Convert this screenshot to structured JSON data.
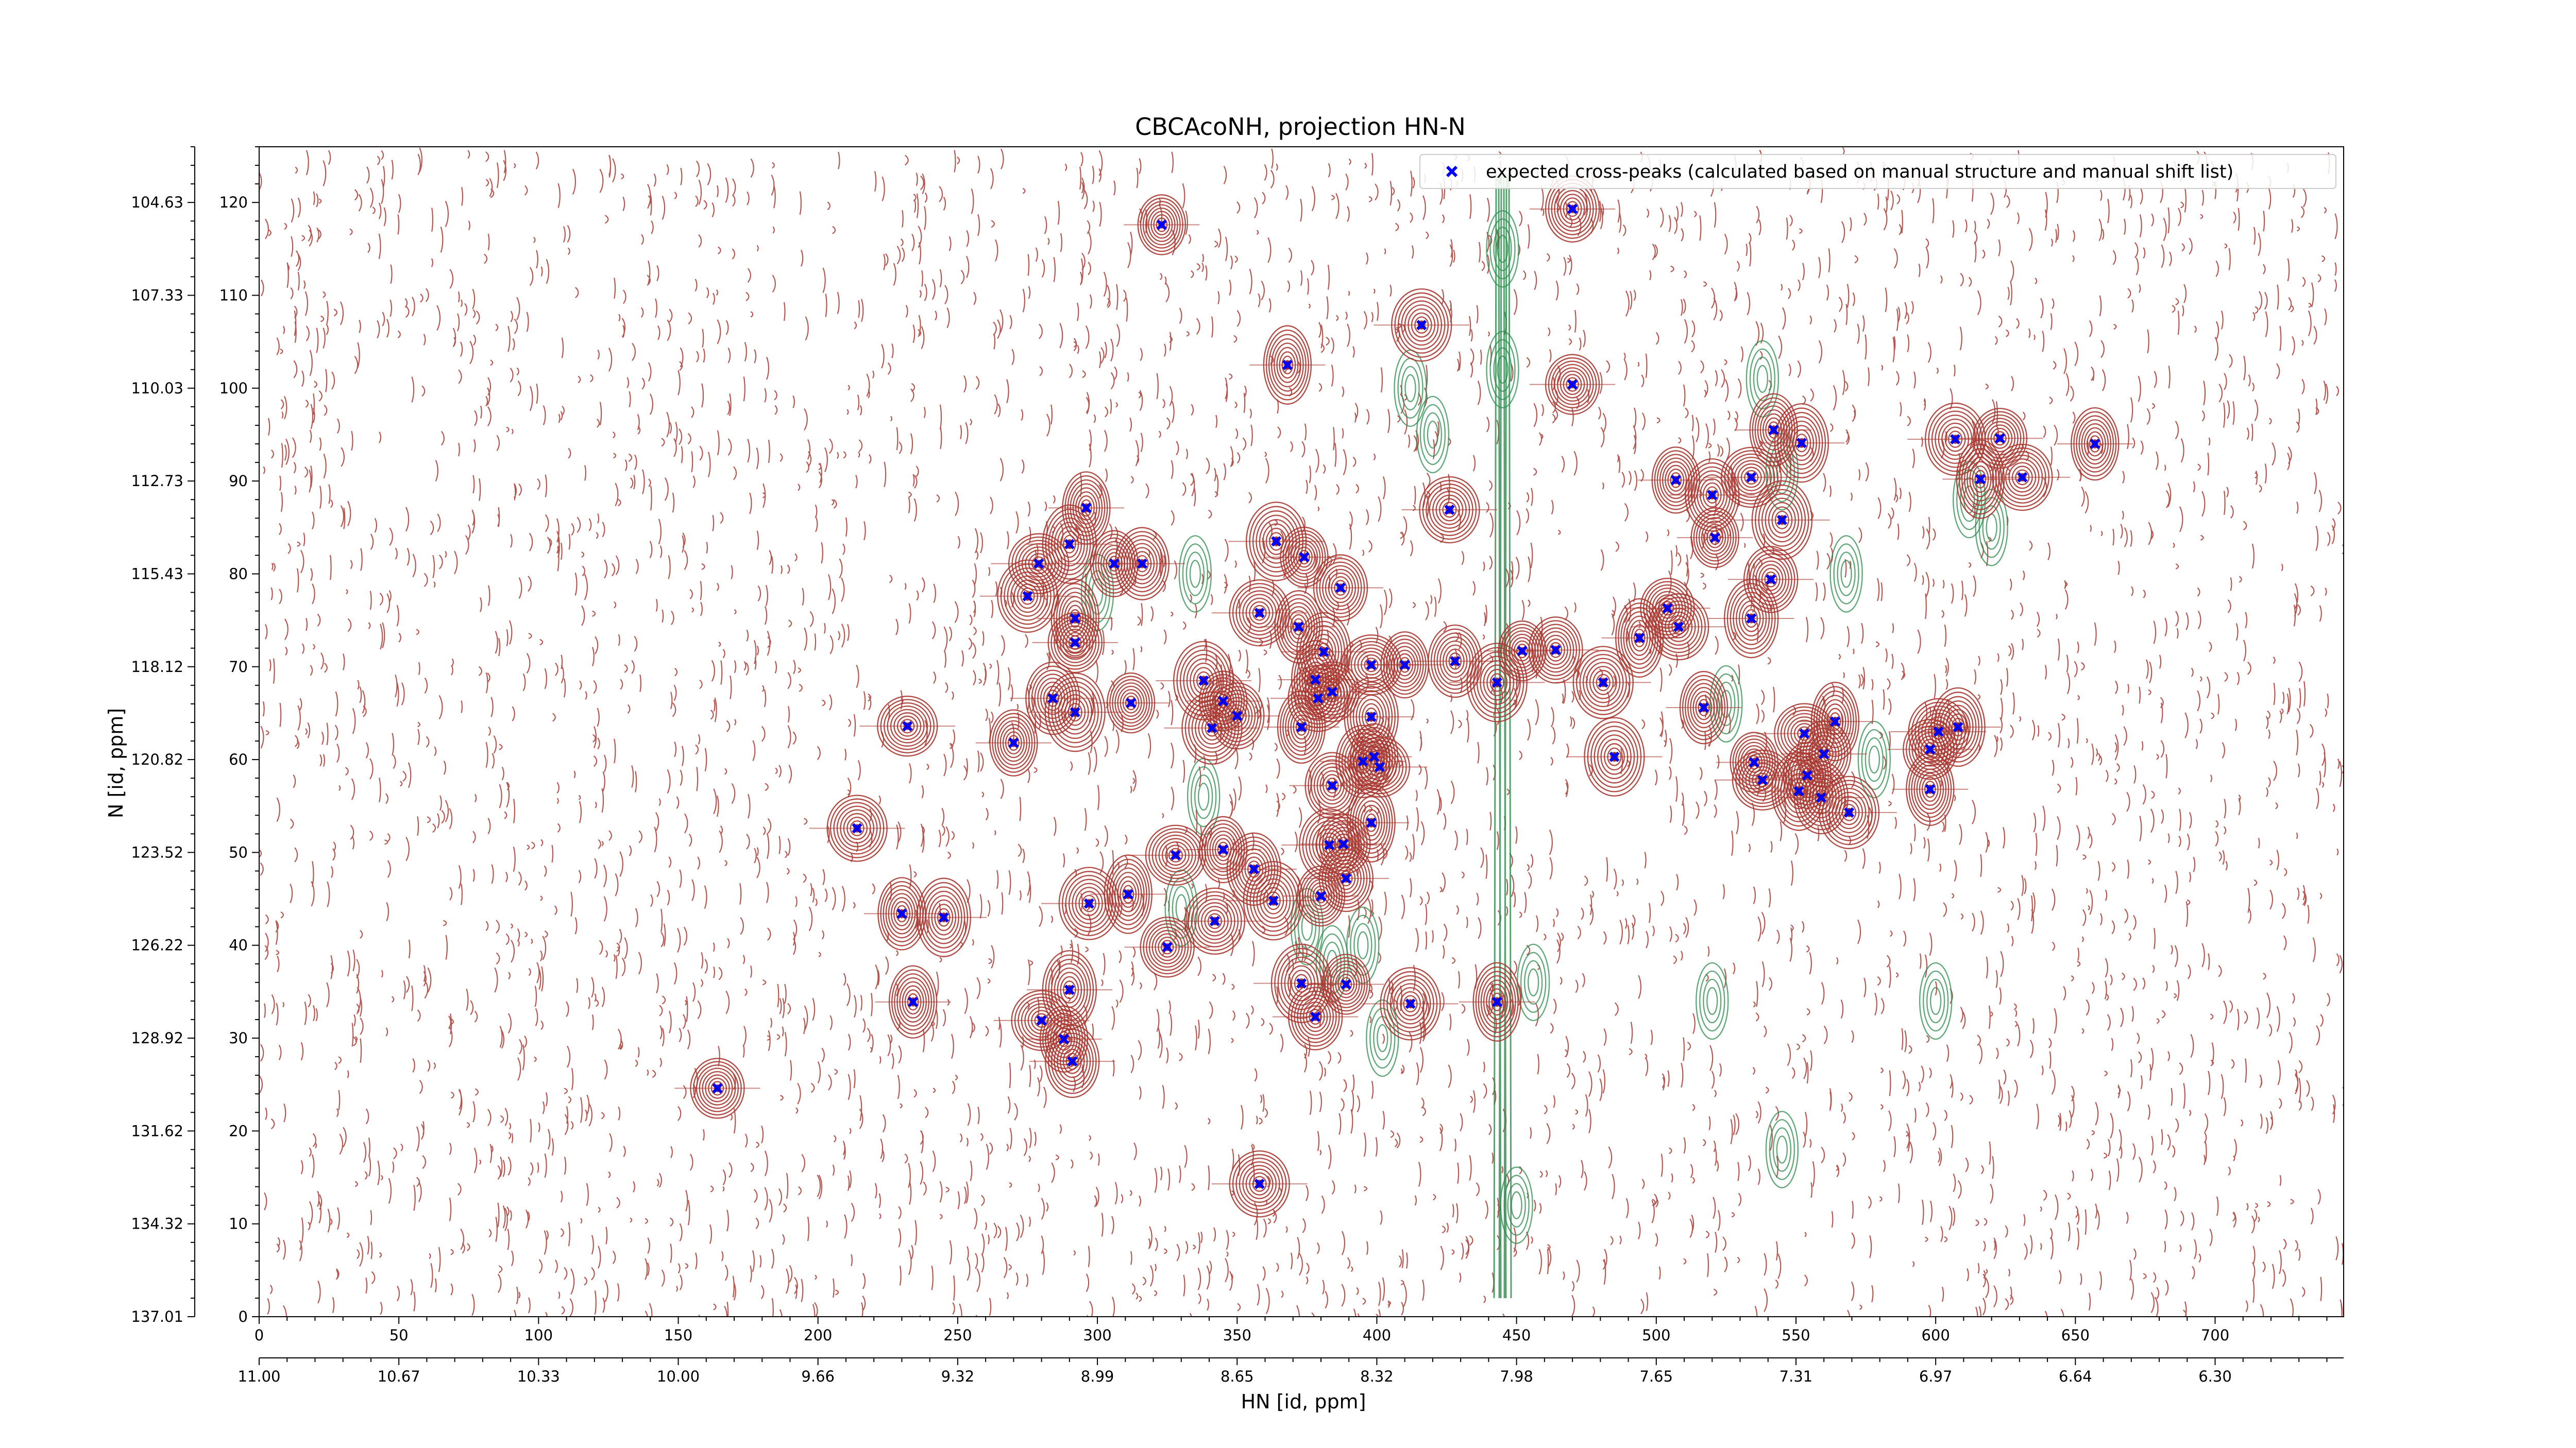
{
  "chart_data": {
    "type": "scatter",
    "title": "CBCAcoNH, projection HN-N",
    "xlabel": "HN [id, ppm]",
    "ylabel": "N [id, ppm]",
    "xlim": [
      0,
      746
    ],
    "ylim": [
      0,
      126
    ],
    "x_ticks": [
      0,
      50,
      100,
      150,
      200,
      250,
      300,
      350,
      400,
      450,
      500,
      550,
      600,
      650,
      700
    ],
    "y_ticks": [
      0,
      10,
      20,
      30,
      40,
      50,
      60,
      70,
      80,
      90,
      100,
      110,
      120
    ],
    "x_ppm_labels": [
      "11.00",
      "10.67",
      "10.33",
      "10.00",
      "9.66",
      "9.32",
      "8.99",
      "8.65",
      "8.32",
      "7.98",
      "7.65",
      "7.31",
      "6.97",
      "6.64",
      "6.30"
    ],
    "y_ppm_labels": [
      "137.01",
      "134.32",
      "131.62",
      "128.92",
      "126.22",
      "123.52",
      "120.82",
      "118.12",
      "115.43",
      "112.73",
      "110.03",
      "107.33",
      "104.63"
    ],
    "grid": false,
    "legend_position": "top-right",
    "background_contours": {
      "positive_color": "#a83a32",
      "negative_color": "#2e8b4e"
    },
    "series": [
      {
        "name": "expected cross-peaks (calculated based on manual structure and manual shift list)",
        "color": "#0000ff",
        "marker": "x",
        "points": [
          [
            323,
            117.6
          ],
          [
            470,
            119.3
          ],
          [
            416,
            106.8
          ],
          [
            368,
            102.5
          ],
          [
            470,
            100.4
          ],
          [
            426,
            86.9
          ],
          [
            296,
            87.1
          ],
          [
            290,
            83.2
          ],
          [
            279,
            81.1
          ],
          [
            306,
            81.1
          ],
          [
            316,
            81.1
          ],
          [
            364,
            83.5
          ],
          [
            374,
            81.8
          ],
          [
            387,
            78.5
          ],
          [
            275,
            77.6
          ],
          [
            292,
            75.2
          ],
          [
            292,
            72.6
          ],
          [
            358,
            75.8
          ],
          [
            372,
            74.3
          ],
          [
            381,
            71.6
          ],
          [
            398,
            70.2
          ],
          [
            410,
            70.2
          ],
          [
            428,
            70.6
          ],
          [
            338,
            68.5
          ],
          [
            345,
            66.3
          ],
          [
            350,
            64.7
          ],
          [
            341,
            63.4
          ],
          [
            378,
            68.6
          ],
          [
            384,
            67.3
          ],
          [
            379,
            66.6
          ],
          [
            373,
            63.5
          ],
          [
            398,
            64.6
          ],
          [
            401,
            59.2
          ],
          [
            399,
            60.3
          ],
          [
            395,
            59.8
          ],
          [
            443,
            68.3
          ],
          [
            452,
            71.7
          ],
          [
            464,
            71.8
          ],
          [
            481,
            68.3
          ],
          [
            494,
            73.1
          ],
          [
            504,
            76.3
          ],
          [
            508,
            74.3
          ],
          [
            517,
            65.6
          ],
          [
            534,
            75.2
          ],
          [
            553,
            62.8
          ],
          [
            554,
            58.3
          ],
          [
            559,
            55.9
          ],
          [
            485,
            60.3
          ],
          [
            535,
            59.7
          ],
          [
            560,
            60.6
          ],
          [
            569,
            54.3
          ],
          [
            564,
            64.1
          ],
          [
            598,
            61.1
          ],
          [
            601,
            63.0
          ],
          [
            598,
            56.8
          ],
          [
            608,
            63.5
          ],
          [
            232,
            63.6
          ],
          [
            270,
            61.8
          ],
          [
            284,
            66.6
          ],
          [
            292,
            65.1
          ],
          [
            312,
            66.1
          ],
          [
            384,
            57.2
          ],
          [
            383,
            50.8
          ],
          [
            398,
            53.2
          ],
          [
            388,
            50.9
          ],
          [
            214,
            52.6
          ],
          [
            230,
            43.4
          ],
          [
            245,
            43.0
          ],
          [
            328,
            49.7
          ],
          [
            345,
            50.3
          ],
          [
            356,
            48.2
          ],
          [
            363,
            44.8
          ],
          [
            380,
            45.3
          ],
          [
            389,
            47.2
          ],
          [
            297,
            44.5
          ],
          [
            311,
            45.5
          ],
          [
            325,
            39.8
          ],
          [
            342,
            42.6
          ],
          [
            234,
            33.9
          ],
          [
            290,
            35.2
          ],
          [
            280,
            31.9
          ],
          [
            288,
            29.9
          ],
          [
            291,
            27.5
          ],
          [
            373,
            35.9
          ],
          [
            389,
            35.8
          ],
          [
            378,
            32.3
          ],
          [
            412,
            33.7
          ],
          [
            443,
            33.9
          ],
          [
            164,
            24.6
          ],
          [
            358,
            14.3
          ],
          [
            542,
            95.5
          ],
          [
            552,
            94.1
          ],
          [
            534,
            90.4
          ],
          [
            507,
            90.1
          ],
          [
            520,
            88.5
          ],
          [
            545,
            85.8
          ],
          [
            521,
            83.9
          ],
          [
            541,
            79.4
          ],
          [
            607,
            94.5
          ],
          [
            616,
            90.2
          ],
          [
            623,
            94.6
          ],
          [
            631,
            90.4
          ],
          [
            657,
            94.0
          ],
          [
            551,
            56.6
          ],
          [
            538,
            57.8
          ]
        ]
      }
    ]
  }
}
